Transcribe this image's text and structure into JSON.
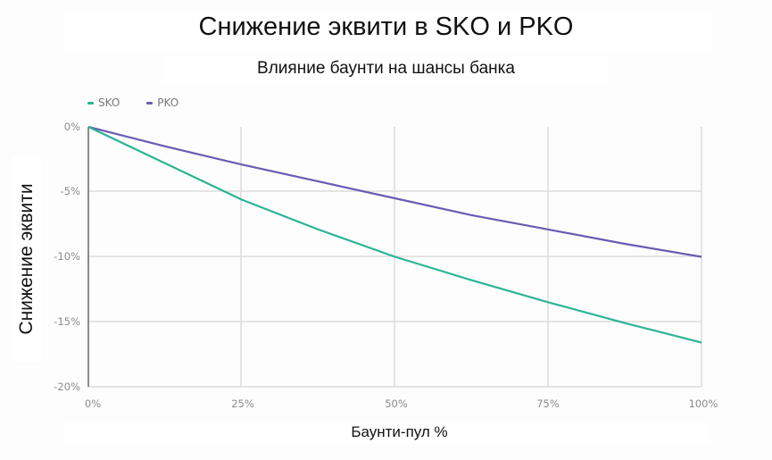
{
  "title": "Снижение эквити в SKO и PKO",
  "subtitle": "Влияние баунти на шансы банка",
  "legend": [
    {
      "label": "SKO",
      "color": "#2bb596"
    },
    {
      "label": "PKO",
      "color": "#6a5cb2"
    }
  ],
  "yaxis_label": "Снижение эквити",
  "xaxis_label": "Баунти-пул %",
  "y_ticks": [
    "0%",
    "-5%",
    "-10%",
    "-15%",
    "-20%"
  ],
  "x_ticks": [
    "0%",
    "25%",
    "50%",
    "75%",
    "100%"
  ],
  "chart_data": {
    "type": "line",
    "title": "Снижение эквити в SKO и PKO",
    "subtitle": "Влияние баунти на шансы банка",
    "xlabel": "Баунти-пул %",
    "ylabel": "Снижение эквити",
    "x": [
      0,
      12.5,
      25,
      37.5,
      50,
      62.5,
      75,
      87.5,
      100
    ],
    "series": [
      {
        "name": "SKO",
        "color": "#2bb596",
        "values": [
          0,
          -2.8,
          -5.6,
          -7.9,
          -10.0,
          -11.8,
          -13.5,
          -15.1,
          -16.6
        ]
      },
      {
        "name": "PKO",
        "color": "#6a5cb2",
        "values": [
          0,
          -1.5,
          -2.9,
          -4.2,
          -5.5,
          -6.8,
          -7.9,
          -9.0,
          -10.0
        ]
      }
    ],
    "xlim": [
      0,
      100
    ],
    "ylim": [
      -20,
      0
    ],
    "x_tick_labels": [
      "0%",
      "25%",
      "50%",
      "75%",
      "100%"
    ],
    "y_tick_labels": [
      "0%",
      "-5%",
      "-10%",
      "-15%",
      "-20%"
    ],
    "grid": true,
    "legend_position": "top-left"
  }
}
